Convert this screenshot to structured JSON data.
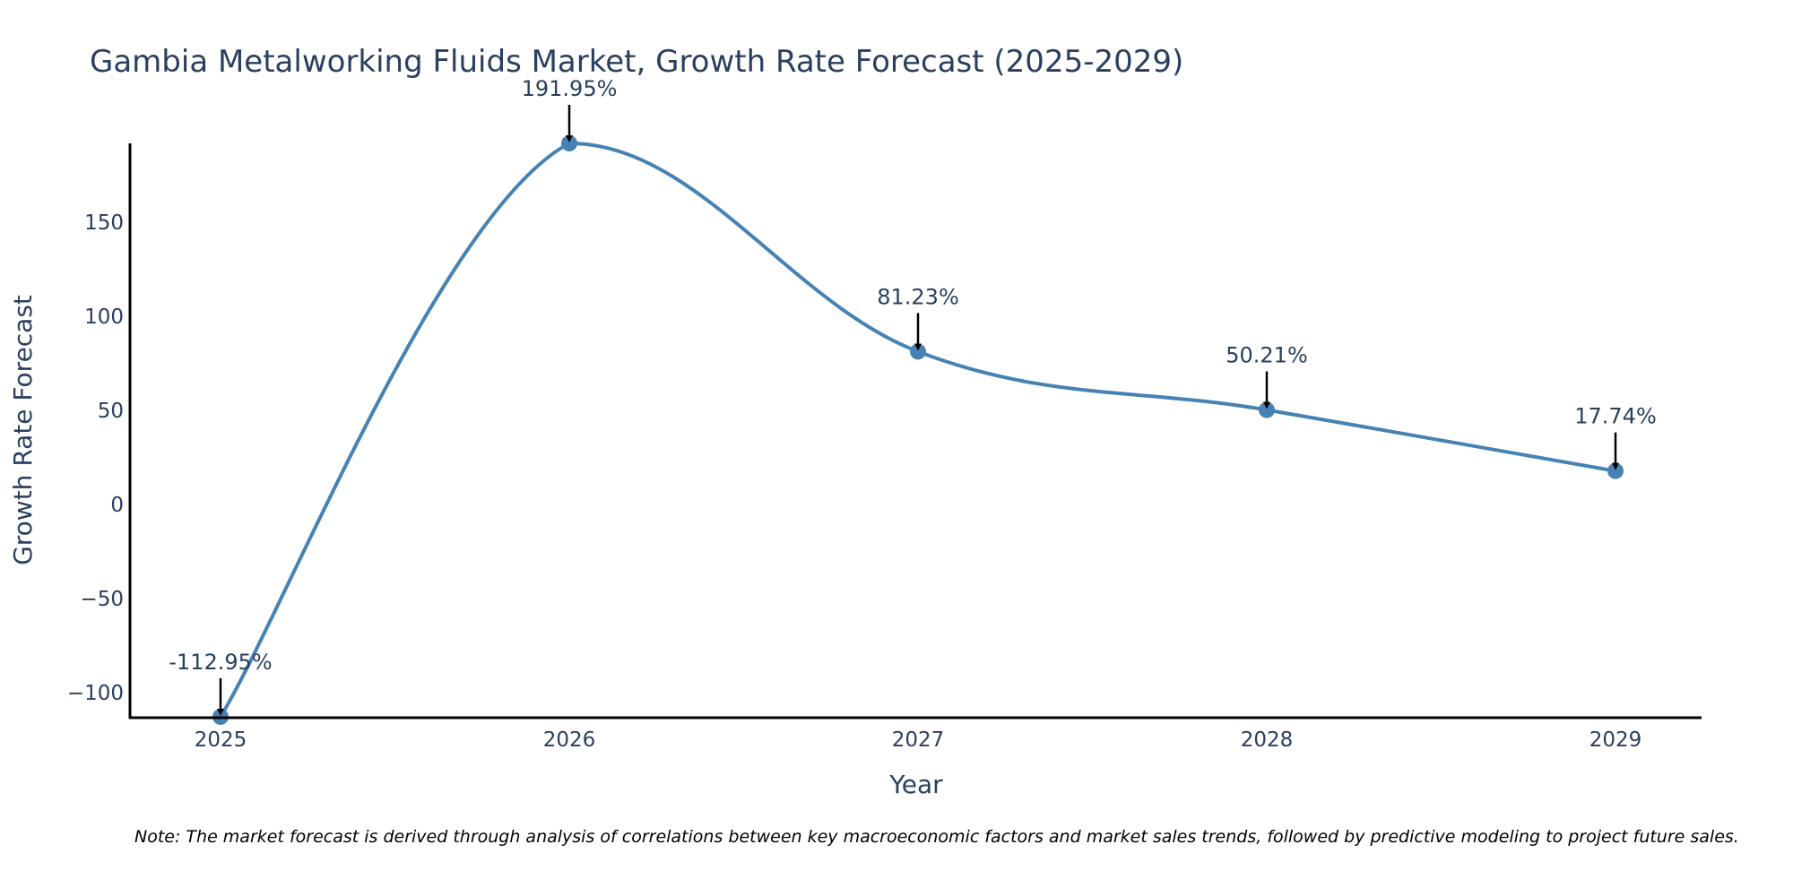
{
  "chart_data": {
    "type": "line",
    "title": "Gambia Metalworking Fluids Market, Growth Rate Forecast (2025-2029)",
    "xlabel": "Year",
    "ylabel": "Growth Rate Forecast",
    "categories": [
      "2025",
      "2026",
      "2027",
      "2028",
      "2029"
    ],
    "values": [
      -112.95,
      191.95,
      81.23,
      50.21,
      17.74
    ],
    "data_labels": [
      "-112.95%",
      "191.95%",
      "81.23%",
      "50.21%",
      "17.74%"
    ],
    "yticks": [
      -100,
      -50,
      0,
      50,
      100,
      150
    ],
    "ytick_labels": [
      "−100",
      "−50",
      "0",
      "50",
      "100",
      "150"
    ],
    "ylim": [
      -112.95,
      191.95
    ],
    "grid": false,
    "line_shape": "spline",
    "colors": {
      "line": "#4682b4",
      "marker": "#4682b4",
      "arrow": "#000000",
      "axis": "#000000"
    }
  },
  "note": "Note: The market forecast is derived through analysis of correlations between key macroeconomic factors and market sales trends, followed by predictive modeling to project future sales."
}
